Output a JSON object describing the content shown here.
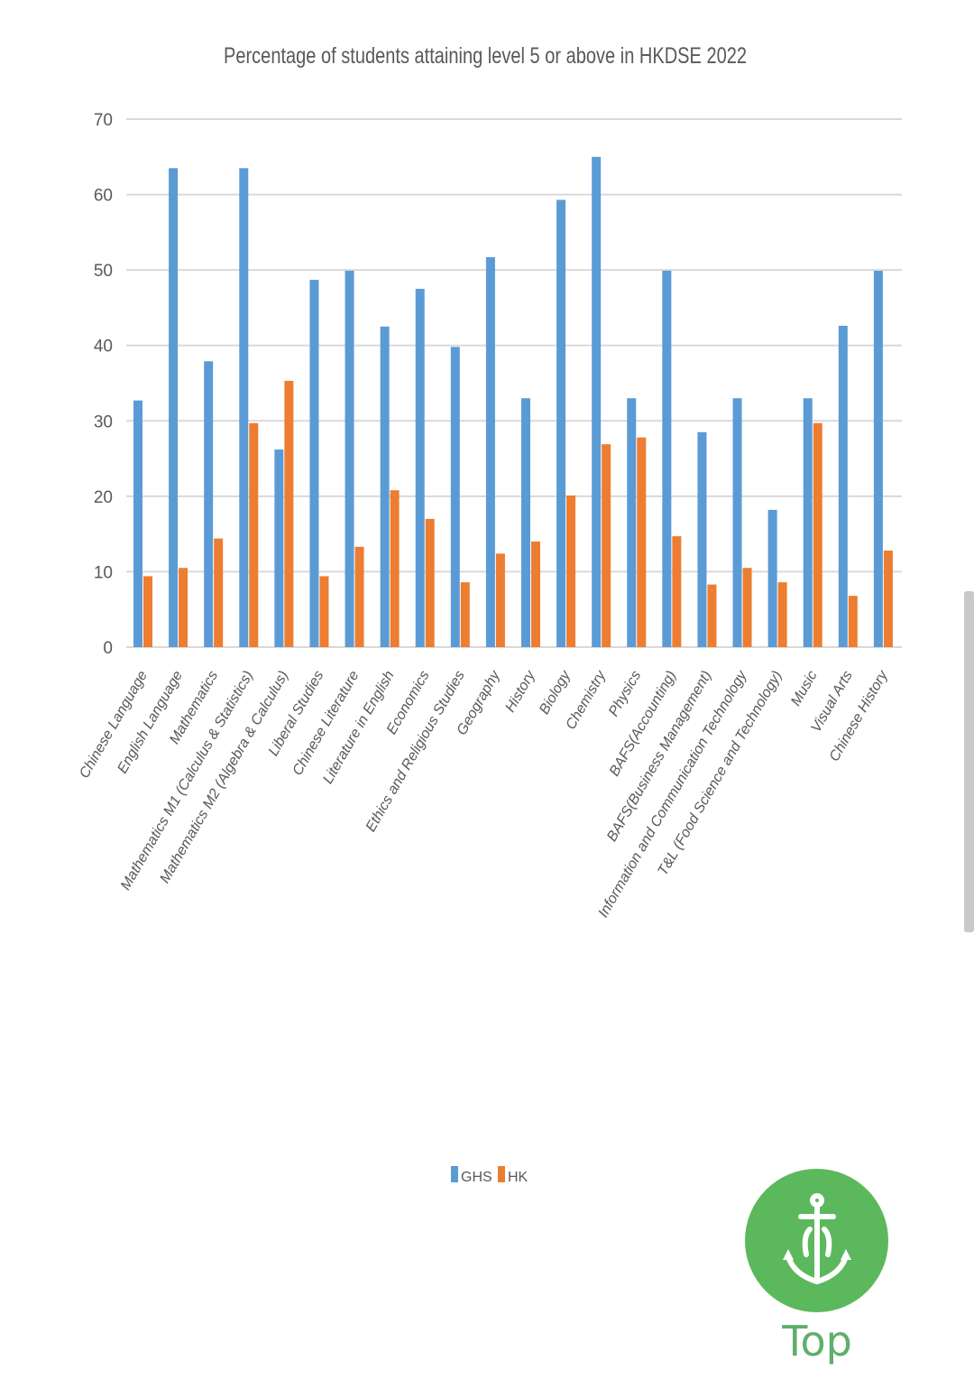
{
  "chart_data": {
    "type": "bar",
    "title": "Percentage of students attaining level 5 or above in HKDSE 2022",
    "xlabel": "",
    "ylabel": "",
    "ylim": [
      0,
      70
    ],
    "yticks": [
      "0",
      "10",
      "20",
      "30",
      "40",
      "50",
      "60",
      "70"
    ],
    "grid": true,
    "legend_position": "bottom",
    "categories": [
      "Chinese Language",
      "English Language",
      "Mathematics",
      "Mathematics M1 (Calculus & Statistics)",
      "Mathematics M2 (Algebra & Calculus)",
      "Liberal Studies",
      "Chinese Literature",
      "Literature in English",
      "Economics",
      "Ethics and Religious Studies",
      "Geography",
      "History",
      "Biology",
      "Chemistry",
      "Physics",
      "BAFS(Accounting)",
      "BAFS(Business  Management)",
      "Information and Communication Technology",
      "T&L (Food Science and Technology)",
      "Music",
      "Visual Arts",
      "Chinese History"
    ],
    "series": [
      {
        "name": "GHS",
        "color": "#5b9bd5",
        "values": [
          32.7,
          63.5,
          37.9,
          63.5,
          26.2,
          48.7,
          49.9,
          42.5,
          47.5,
          39.8,
          51.7,
          33.0,
          59.3,
          65.0,
          33.0,
          49.9,
          28.5,
          33.0,
          18.2,
          33.0,
          42.6,
          49.9
        ]
      },
      {
        "name": "HK",
        "color": "#ed7d31",
        "values": [
          9.4,
          10.5,
          14.4,
          29.7,
          35.3,
          9.4,
          13.3,
          20.8,
          17.0,
          8.6,
          12.4,
          14.0,
          20.1,
          26.9,
          27.8,
          14.7,
          8.3,
          10.5,
          8.6,
          29.7,
          6.8,
          12.8
        ]
      }
    ]
  },
  "top_button": {
    "label": "Top",
    "icon": "anchor-icon",
    "color": "#5cb85c"
  }
}
